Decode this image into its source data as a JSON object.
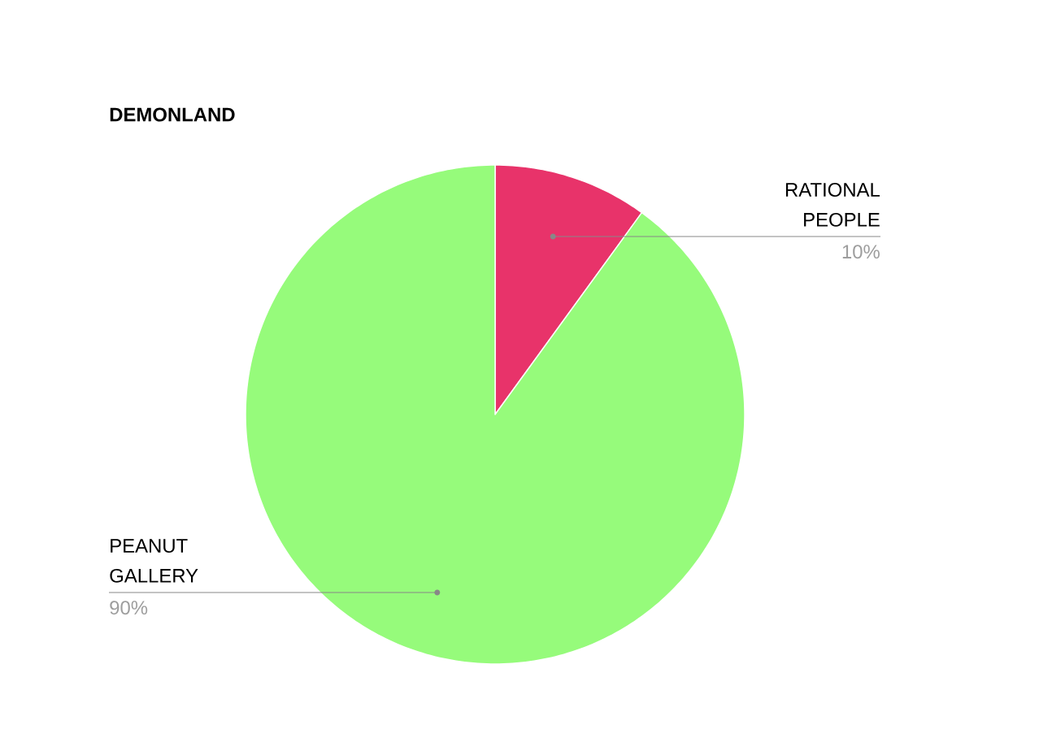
{
  "chart_data": {
    "type": "pie",
    "title": "DEMONLAND",
    "categories": [
      "RATIONAL PEOPLE",
      "PEANUT GALLERY"
    ],
    "values": [
      10,
      90
    ],
    "value_labels": [
      "10%",
      "90%"
    ],
    "colors": [
      "#e8336a",
      "#96fb7b"
    ]
  }
}
